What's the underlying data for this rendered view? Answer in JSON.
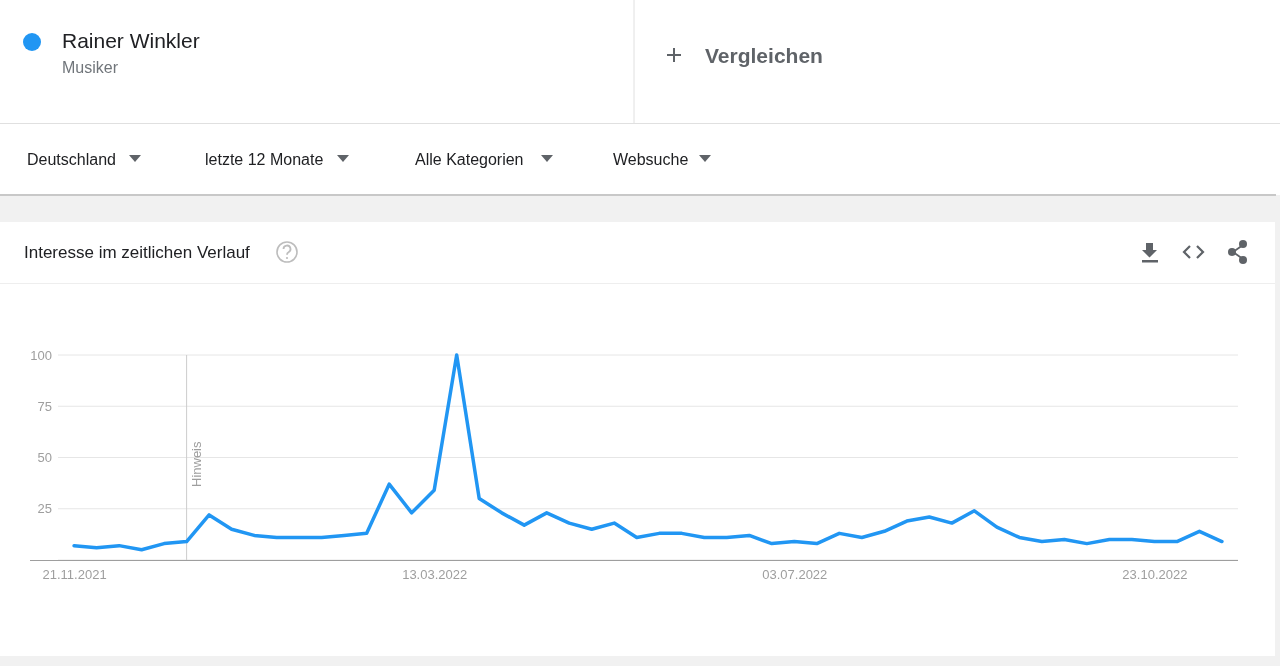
{
  "chart_data": {
    "type": "line",
    "title": "Interesse im zeitlichen Verlauf",
    "annotations": [
      "Musiker",
      "Vergleichen",
      "Deutschland",
      "letzte 12 Monate",
      "Alle Kategorien",
      "Websuche"
    ],
    "x": [
      "2021-11-21",
      "2021-11-28",
      "2021-12-05",
      "2021-12-12",
      "2021-12-19",
      "2021-12-26",
      "2022-01-02",
      "2022-01-09",
      "2022-01-16",
      "2022-01-23",
      "2022-01-30",
      "2022-02-06",
      "2022-02-13",
      "2022-02-20",
      "2022-02-27",
      "2022-03-06",
      "2022-03-13",
      "2022-03-20",
      "2022-03-27",
      "2022-04-03",
      "2022-04-10",
      "2022-04-17",
      "2022-04-24",
      "2022-05-01",
      "2022-05-08",
      "2022-05-15",
      "2022-05-22",
      "2022-05-29",
      "2022-06-05",
      "2022-06-12",
      "2022-06-19",
      "2022-06-26",
      "2022-07-03",
      "2022-07-10",
      "2022-07-17",
      "2022-07-24",
      "2022-07-31",
      "2022-08-07",
      "2022-08-14",
      "2022-08-21",
      "2022-08-28",
      "2022-09-04",
      "2022-09-11",
      "2022-09-18",
      "2022-09-25",
      "2022-10-02",
      "2022-10-09",
      "2022-10-16",
      "2022-10-23",
      "2022-10-30",
      "2022-11-06",
      "2022-11-13"
    ],
    "series": [
      {
        "name": "Rainer Winkler",
        "color": "#2196f3",
        "values": [
          7,
          6,
          7,
          5,
          8,
          9,
          22,
          15,
          12,
          11,
          11,
          11,
          12,
          13,
          37,
          23,
          34,
          100,
          30,
          23,
          17,
          23,
          18,
          15,
          18,
          11,
          13,
          13,
          11,
          11,
          12,
          8,
          9,
          8,
          13,
          11,
          14,
          19,
          21,
          18,
          24,
          16,
          11,
          9,
          10,
          8,
          10,
          10,
          9,
          9,
          14,
          9
        ]
      }
    ],
    "xlim": [
      "2021-11-16",
      "2022-11-18"
    ],
    "xticks": [
      {
        "value": "2021-11-21",
        "label": "21.11.2021"
      },
      {
        "value": "2022-03-13",
        "label": "13.03.2022"
      },
      {
        "value": "2022-07-03",
        "label": "03.07.2022"
      },
      {
        "value": "2022-10-23",
        "label": "23.10.2022"
      }
    ],
    "ylim": [
      0,
      100
    ],
    "yticks": [
      {
        "value": 0,
        "label": null
      },
      25,
      50,
      75,
      100
    ],
    "grid": "y",
    "legend": "top left",
    "marker": "none",
    "line_style": "solid",
    "ref_lines": [
      {
        "axis": "x",
        "value": "2021-12-26",
        "label": "Hinweis",
        "color": "#cccccc"
      }
    ]
  }
}
